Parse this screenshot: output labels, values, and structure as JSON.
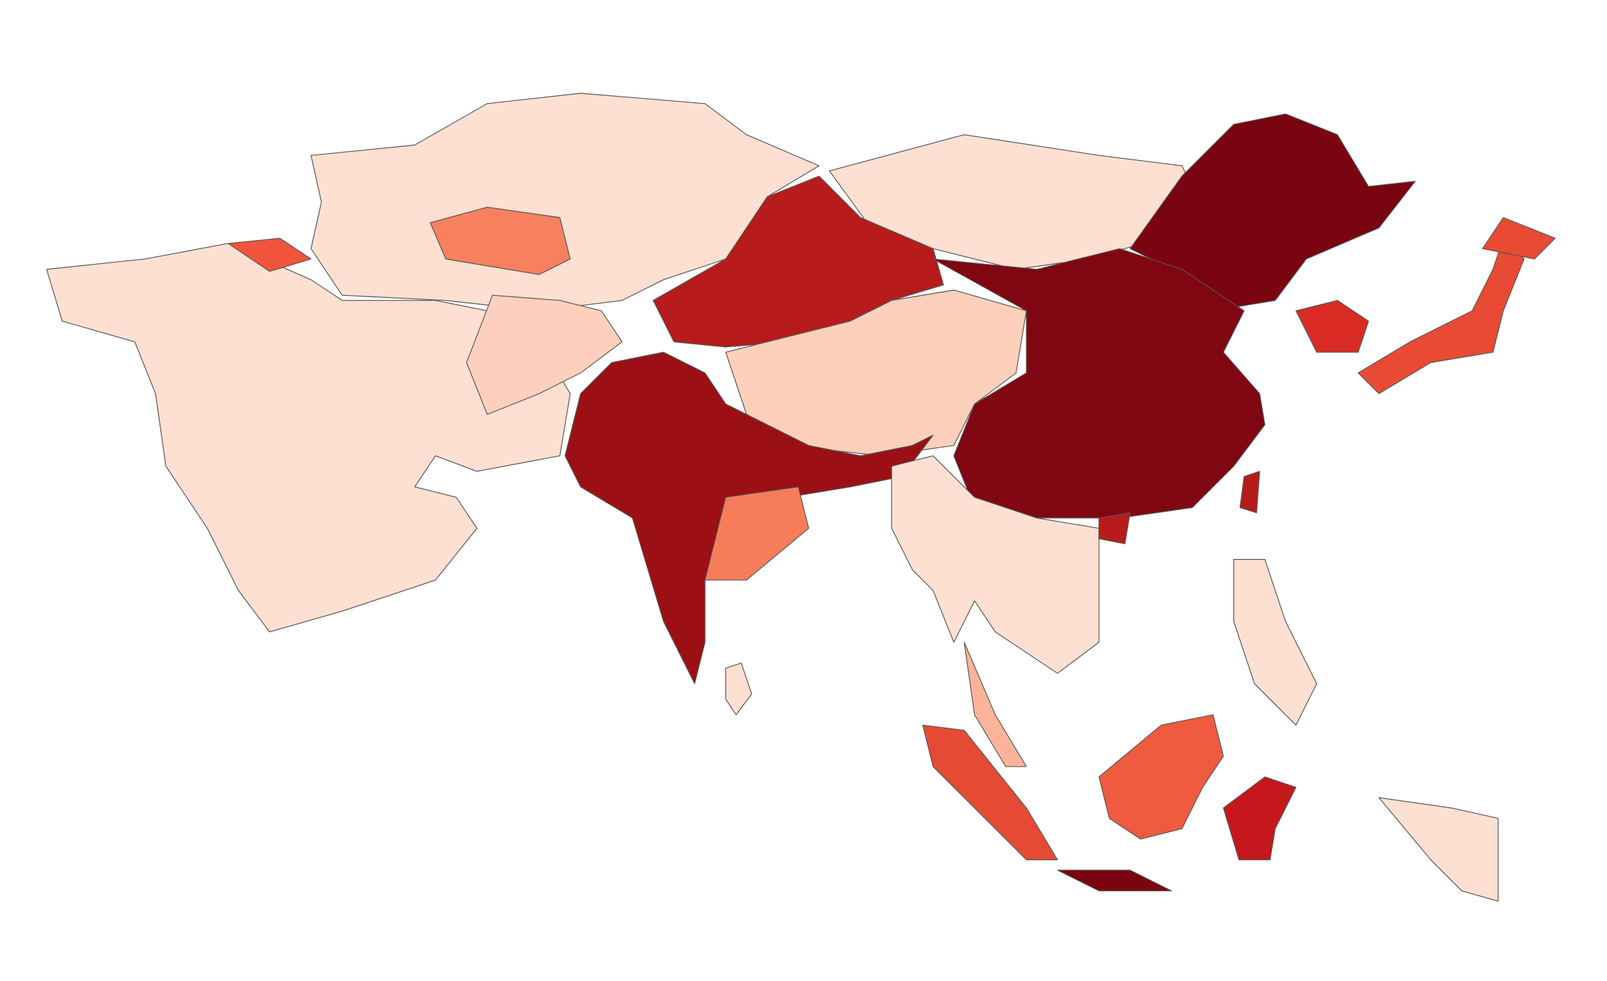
{
  "map": {
    "regions": [
      {
        "color": "#fde0d2"
      },
      {
        "color": "#fde0d2"
      },
      {
        "color": "#f7805f"
      },
      {
        "color": "#fdd0bd"
      },
      {
        "color": "#fde0d2"
      },
      {
        "color": "#b71b1b"
      },
      {
        "color": "#fcd0bb"
      },
      {
        "color": "#7a0510"
      },
      {
        "color": "#800711"
      },
      {
        "color": "#9b0f15"
      },
      {
        "color": "#f77d5a"
      },
      {
        "color": "#fde0d2"
      },
      {
        "color": "#d92b24"
      },
      {
        "color": "#e94a33"
      },
      {
        "color": "#e94a33"
      },
      {
        "color": "#b71b1b"
      },
      {
        "color": "#b71b1b"
      },
      {
        "color": "#fde0d2"
      },
      {
        "color": "#e54a35"
      },
      {
        "color": "#f05a3f"
      },
      {
        "color": "#7a0510"
      },
      {
        "color": "#c5171c"
      },
      {
        "color": "#fde0d2"
      },
      {
        "color": "#fde0d2"
      },
      {
        "color": "#fbb49a"
      },
      {
        "color": "#f0553c"
      }
    ]
  }
}
